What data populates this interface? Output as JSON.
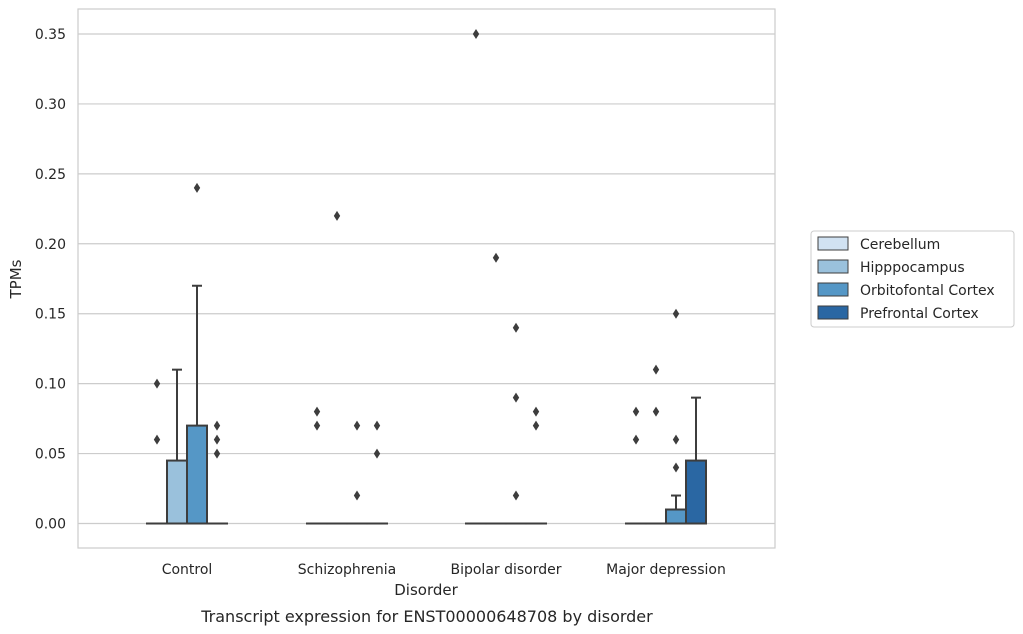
{
  "chart_data": {
    "type": "box",
    "title": "",
    "caption": "Transcript expression for ENST00000648708 by disorder",
    "xlabel": "Disorder",
    "ylabel": "TPMs",
    "ylim": [
      -0.017,
      0.367
    ],
    "yticks": [
      0.0,
      0.05,
      0.1,
      0.15,
      0.2,
      0.25,
      0.3,
      0.35
    ],
    "ytick_labels": [
      "0.00",
      "0.05",
      "0.10",
      "0.15",
      "0.20",
      "0.25",
      "0.30",
      "0.35"
    ],
    "categories": [
      "Control",
      "Schizophrenia",
      "Bipolar disorder",
      "Major depression"
    ],
    "grid": "horizontal",
    "legend_position": "right",
    "series": [
      {
        "name": "Cerebellum",
        "color": "#d1e2f2",
        "boxes": [
          {
            "category": "Control",
            "whisker_low": 0,
            "q1": 0,
            "median": 0,
            "q3": 0,
            "whisker_high": 0,
            "outliers": [
              0.06,
              0.1
            ]
          },
          {
            "category": "Schizophrenia",
            "whisker_low": 0,
            "q1": 0,
            "median": 0,
            "q3": 0,
            "whisker_high": 0,
            "outliers": [
              0.07,
              0.08
            ]
          },
          {
            "category": "Bipolar disorder",
            "whisker_low": 0,
            "q1": 0,
            "median": 0,
            "q3": 0,
            "whisker_high": 0,
            "outliers": [
              0.35
            ]
          },
          {
            "category": "Major depression",
            "whisker_low": 0,
            "q1": 0,
            "median": 0,
            "q3": 0,
            "whisker_high": 0,
            "outliers": [
              0.06,
              0.08
            ]
          }
        ]
      },
      {
        "name": "Hipppocampus",
        "color": "#9ac1dc",
        "boxes": [
          {
            "category": "Control",
            "whisker_low": 0,
            "q1": 0,
            "median": 0,
            "q3": 0.045,
            "whisker_high": 0.11,
            "outliers": []
          },
          {
            "category": "Schizophrenia",
            "whisker_low": 0,
            "q1": 0,
            "median": 0,
            "q3": 0,
            "whisker_high": 0,
            "outliers": [
              0.22
            ]
          },
          {
            "category": "Bipolar disorder",
            "whisker_low": 0,
            "q1": 0,
            "median": 0,
            "q3": 0,
            "whisker_high": 0,
            "outliers": [
              0.19
            ]
          },
          {
            "category": "Major depression",
            "whisker_low": 0,
            "q1": 0,
            "median": 0,
            "q3": 0,
            "whisker_high": 0,
            "outliers": [
              0.08,
              0.11
            ]
          }
        ]
      },
      {
        "name": "Orbitofontal Cortex",
        "color": "#5597c6",
        "boxes": [
          {
            "category": "Control",
            "whisker_low": 0,
            "q1": 0,
            "median": 0,
            "q3": 0.07,
            "whisker_high": 0.17,
            "outliers": [
              0.24
            ]
          },
          {
            "category": "Schizophrenia",
            "whisker_low": 0,
            "q1": 0,
            "median": 0,
            "q3": 0,
            "whisker_high": 0,
            "outliers": [
              0.02,
              0.07
            ]
          },
          {
            "category": "Bipolar disorder",
            "whisker_low": 0,
            "q1": 0,
            "median": 0,
            "q3": 0,
            "whisker_high": 0,
            "outliers": [
              0.02,
              0.09,
              0.14
            ]
          },
          {
            "category": "Major depression",
            "whisker_low": 0,
            "q1": 0,
            "median": 0,
            "q3": 0.01,
            "whisker_high": 0.02,
            "outliers": [
              0.04,
              0.06,
              0.15
            ]
          }
        ]
      },
      {
        "name": "Prefrontal Cortex",
        "color": "#2a67a3",
        "boxes": [
          {
            "category": "Control",
            "whisker_low": 0,
            "q1": 0,
            "median": 0,
            "q3": 0,
            "whisker_high": 0,
            "outliers": [
              0.05,
              0.06,
              0.07
            ]
          },
          {
            "category": "Schizophrenia",
            "whisker_low": 0,
            "q1": 0,
            "median": 0,
            "q3": 0,
            "whisker_high": 0,
            "outliers": [
              0.05,
              0.07
            ]
          },
          {
            "category": "Bipolar disorder",
            "whisker_low": 0,
            "q1": 0,
            "median": 0,
            "q3": 0,
            "whisker_high": 0,
            "outliers": [
              0.07,
              0.08
            ]
          },
          {
            "category": "Major depression",
            "whisker_low": 0,
            "q1": 0,
            "median": 0,
            "q3": 0.045,
            "whisker_high": 0.09,
            "outliers": []
          }
        ]
      }
    ]
  },
  "colors": {
    "grid": "#cccccc",
    "spine": "#cccccc",
    "edge": "#3d3d3d"
  }
}
